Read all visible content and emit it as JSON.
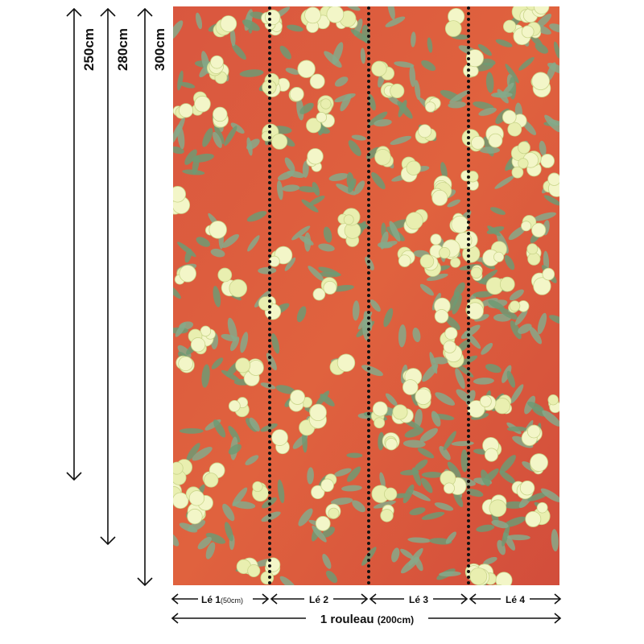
{
  "dimensions": [
    {
      "label": "250cm"
    },
    {
      "label": "280cm"
    },
    {
      "label": "300cm"
    }
  ],
  "strips": [
    {
      "label": "Lé 1",
      "note": "(50cm)"
    },
    {
      "label": "Lé 2"
    },
    {
      "label": "Lé 3"
    },
    {
      "label": "Lé 4"
    }
  ],
  "roll": {
    "label": "1 rouleau",
    "note": "(200cm)"
  }
}
